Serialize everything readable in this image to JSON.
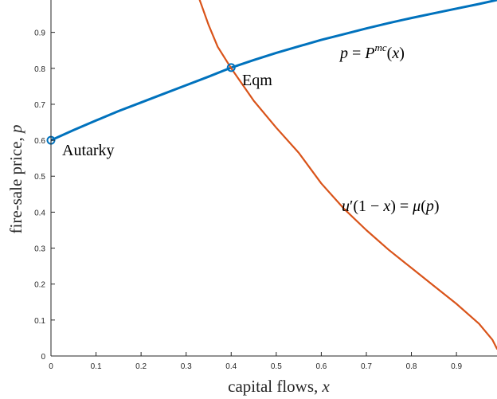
{
  "chart_data": {
    "type": "line",
    "xlabel": {
      "text": "capital flows, ",
      "var": "x"
    },
    "ylabel": {
      "text": "fire-sale price, ",
      "var": "p"
    },
    "xlim": [
      0,
      0.99
    ],
    "ylim": [
      0,
      0.99
    ],
    "grid": false,
    "box": false,
    "x_ticks": [
      0,
      0.1,
      0.2,
      0.3,
      0.4,
      0.5,
      0.6,
      0.7,
      0.8,
      0.9
    ],
    "x_tick_labels": [
      "0",
      "0.1",
      "0.2",
      "0.3",
      "0.4",
      "0.5",
      "0.6",
      "0.7",
      "0.8",
      "0.9"
    ],
    "y_ticks": [
      0,
      0.1,
      0.2,
      0.3,
      0.4,
      0.5,
      0.6,
      0.7,
      0.8,
      0.9
    ],
    "y_tick_labels": [
      "0",
      "0.1",
      "0.2",
      "0.3",
      "0.4",
      "0.5",
      "0.6",
      "0.7",
      "0.8",
      "0.9"
    ],
    "series": [
      {
        "color": "#0072BD",
        "x": [
          0,
          0.05,
          0.1,
          0.15,
          0.2,
          0.25,
          0.3,
          0.35,
          0.4,
          0.45,
          0.5,
          0.55,
          0.6,
          0.65,
          0.7,
          0.75,
          0.8,
          0.85,
          0.9,
          0.95,
          0.99
        ],
        "y": [
          0.6,
          0.628,
          0.655,
          0.681,
          0.705,
          0.729,
          0.753,
          0.777,
          0.802,
          0.823,
          0.843,
          0.861,
          0.879,
          0.895,
          0.911,
          0.926,
          0.94,
          0.953,
          0.966,
          0.979,
          0.99
        ]
      },
      {
        "color": "#D95319",
        "x": [
          0.33,
          0.35,
          0.37,
          0.4,
          0.45,
          0.5,
          0.55,
          0.6,
          0.65,
          0.7,
          0.75,
          0.8,
          0.85,
          0.9,
          0.95,
          0.98,
          0.99
        ],
        "y": [
          0.99,
          0.92,
          0.86,
          0.8,
          0.71,
          0.635,
          0.565,
          0.48,
          0.41,
          0.35,
          0.295,
          0.245,
          0.195,
          0.145,
          0.09,
          0.045,
          0.02
        ]
      }
    ],
    "points": [
      {
        "x": 0,
        "y": 0.6,
        "color": "#0072BD"
      },
      {
        "x": 0.4,
        "y": 0.802,
        "color": "#0072BD"
      }
    ],
    "annotations": {
      "autarky": "Autarky",
      "eqm": "Eqm",
      "blue_curve": {
        "lhs": "p",
        "eq": " = ",
        "P": "P",
        "sup": "mc",
        "open": "(",
        "arg": "x",
        "close": ")"
      },
      "red_curve": {
        "u": "u",
        "prime": "′",
        "open1": "(1 − ",
        "x": "x",
        "close1": ")",
        "eq": " = ",
        "mu": "μ",
        "open2": "(",
        "p": "p",
        "close2": ")"
      }
    }
  }
}
